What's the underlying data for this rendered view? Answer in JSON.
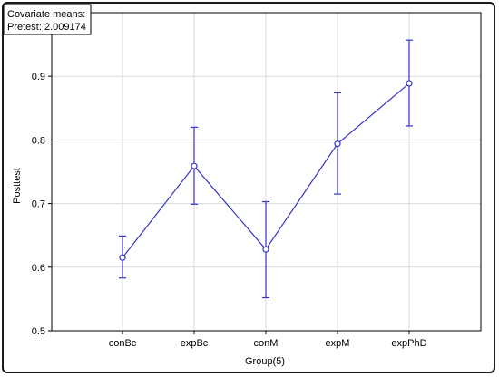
{
  "chart_data": {
    "type": "line",
    "title": "",
    "xlabel": "Group(5)",
    "ylabel": "Posttest",
    "annotation": {
      "line1": "Covariate means:",
      "line2": "Pretest: 2.009174"
    },
    "categories": [
      "conBc",
      "expBc",
      "conM",
      "expM",
      "expPhD"
    ],
    "series": [
      {
        "values": [
          0.615,
          0.759,
          0.628,
          0.794,
          0.889
        ],
        "lower": [
          0.583,
          0.699,
          0.552,
          0.715,
          0.822
        ],
        "upper": [
          0.649,
          0.82,
          0.703,
          0.874,
          0.957
        ]
      }
    ],
    "ylim": [
      0.5,
      1.0
    ],
    "yticks": [
      "0.5",
      "0.6",
      "0.7",
      "0.8",
      "0.9"
    ],
    "grid": true,
    "colors": {
      "series": "#3333cc",
      "grid": "#d9d9d9",
      "axis": "#000000"
    }
  }
}
